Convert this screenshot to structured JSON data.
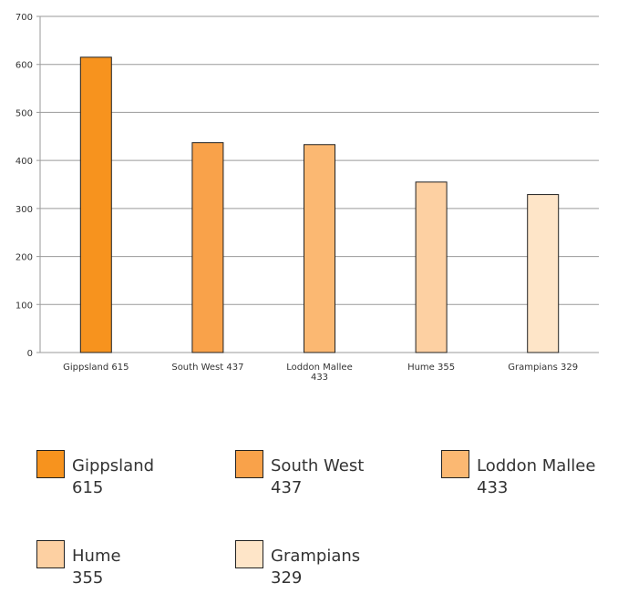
{
  "chart_data": {
    "type": "bar",
    "categories": [
      "Gippsland 615",
      "South West 437",
      "Loddon Mallee 433",
      "Hume 355",
      "Grampians 329"
    ],
    "category_lines": [
      [
        "Gippsland 615"
      ],
      [
        "South West 437"
      ],
      [
        "Loddon Mallee",
        "433"
      ],
      [
        "Hume 355"
      ],
      [
        "Grampians 329"
      ]
    ],
    "values": [
      615,
      437,
      433,
      355,
      329
    ],
    "colors": [
      "#F7931E",
      "#F9A24A",
      "#FBB872",
      "#FDD0A2",
      "#FEE5C8"
    ],
    "ylim": [
      0,
      700
    ],
    "yticks": [
      0,
      100,
      200,
      300,
      400,
      500,
      600,
      700
    ],
    "grid": true,
    "title": "",
    "xlabel": "",
    "ylabel": "",
    "legend": {
      "placement": "bottom",
      "entries": [
        {
          "name": "Gippsland",
          "value": "615"
        },
        {
          "name": "South West",
          "value": "437"
        },
        {
          "name": "Loddon Mallee",
          "value": "433"
        },
        {
          "name": "Hume",
          "value": "355"
        },
        {
          "name": "Grampians",
          "value": "329"
        }
      ]
    }
  }
}
